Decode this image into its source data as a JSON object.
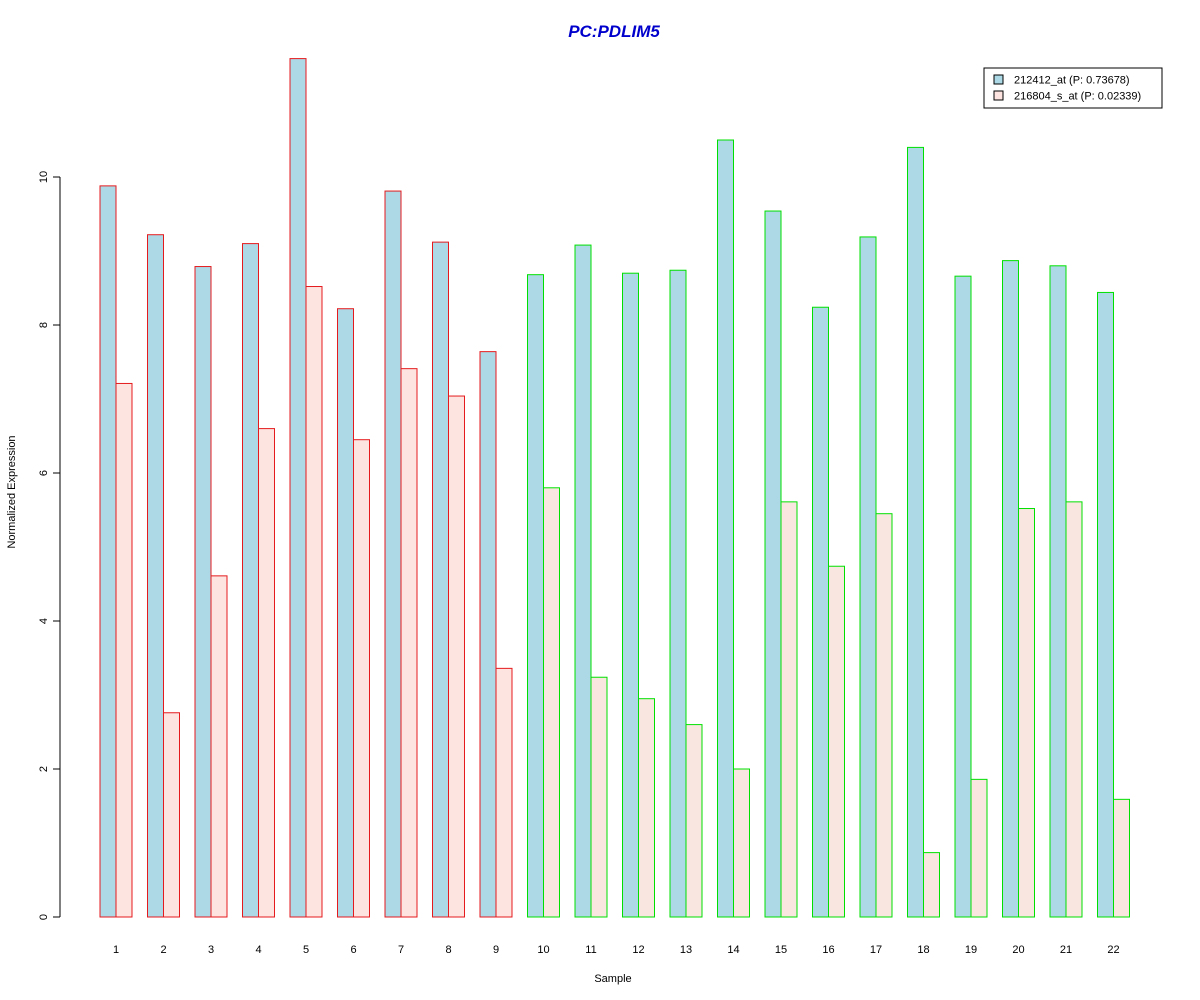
{
  "chart_data": {
    "type": "bar",
    "title": "PC:PDLIM5",
    "xlabel": "Sample",
    "ylabel": "Normalized Expression",
    "categories": [
      "1",
      "2",
      "3",
      "4",
      "5",
      "6",
      "7",
      "8",
      "9",
      "10",
      "11",
      "12",
      "13",
      "14",
      "15",
      "16",
      "17",
      "18",
      "19",
      "20",
      "21",
      "22"
    ],
    "y_ticks": [
      "0",
      "2",
      "4",
      "6",
      "8",
      "10"
    ],
    "ylim": [
      0,
      11.6
    ],
    "grid": false,
    "legend_position": "top-right",
    "series": [
      {
        "name": "212412_at (P: 0.73678)",
        "fill": "#add8e6",
        "values": [
          9.88,
          9.22,
          8.79,
          9.1,
          11.6,
          8.22,
          9.81,
          9.12,
          7.64,
          8.68,
          9.08,
          8.7,
          8.74,
          10.5,
          9.54,
          8.24,
          9.19,
          10.4,
          8.66,
          8.87,
          8.8,
          8.44
        ]
      },
      {
        "name": "216804_s_at (P: 0.02339)",
        "fill": "#fde4e1",
        "values": [
          7.21,
          2.76,
          4.61,
          6.6,
          8.52,
          6.45,
          7.41,
          7.04,
          3.36,
          5.8,
          3.24,
          2.95,
          2.6,
          2.0,
          5.61,
          4.74,
          5.45,
          0.87,
          1.86,
          5.52,
          5.61,
          1.59
        ]
      }
    ],
    "group_colors": {
      "group_1": "#e41a1c",
      "group_2": "#00e000",
      "group_1_samples": [
        1,
        2,
        3,
        4,
        5,
        6,
        7,
        8,
        9
      ],
      "group_2_samples": [
        10,
        11,
        12,
        13,
        14,
        15,
        16,
        17,
        18,
        19,
        20,
        21,
        22
      ]
    },
    "title_color": "#0000cc"
  }
}
